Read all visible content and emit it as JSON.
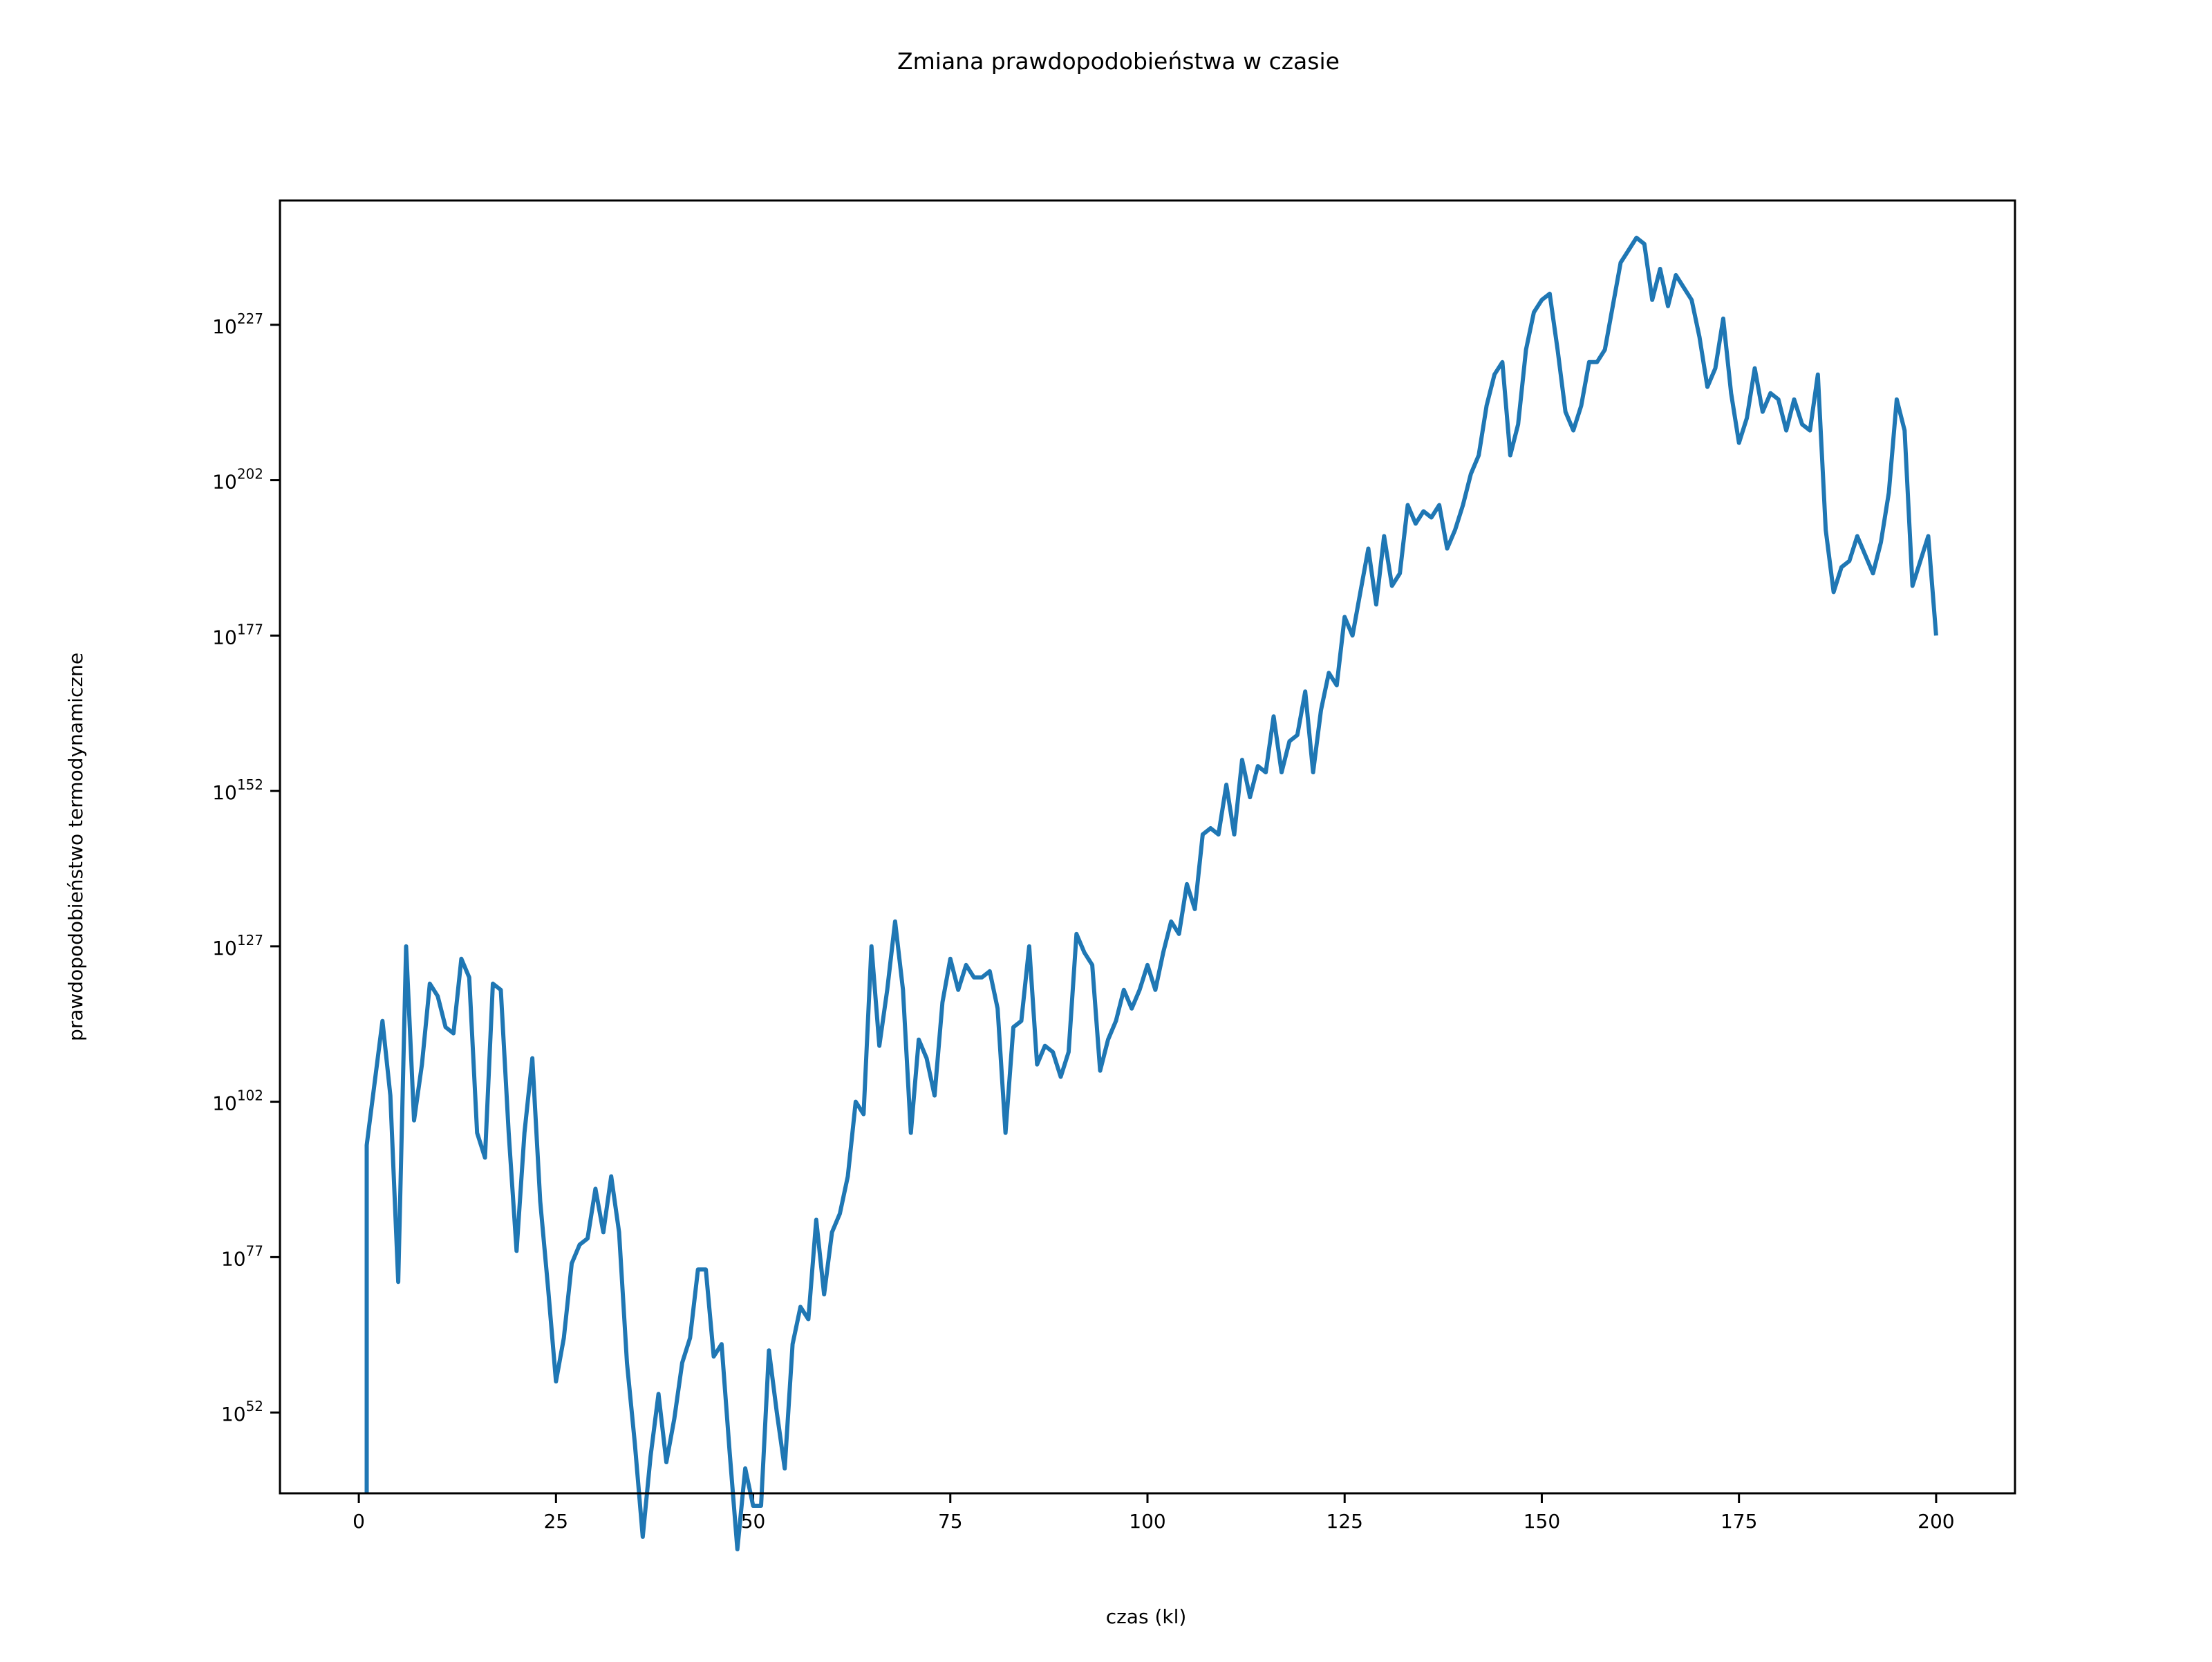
{
  "chart_data": {
    "type": "line",
    "title": "Zmiana prawdopodobieństwa w czasie",
    "xlabel": "czas (kl)",
    "ylabel": "prawdopodobieństwo termodynamiczne",
    "y_scale": "log",
    "xlim": [
      -10,
      210
    ],
    "ylim_exponent": [
      39,
      247
    ],
    "x_ticks": [
      0,
      25,
      50,
      75,
      100,
      125,
      150,
      175,
      200
    ],
    "x_tick_labels": [
      "0",
      "25",
      "50",
      "75",
      "100",
      "125",
      "150",
      "175",
      "200"
    ],
    "y_tick_exponents": [
      52,
      77,
      102,
      127,
      152,
      177,
      202,
      227
    ],
    "y_tick_labels": [
      {
        "base": "10",
        "exp": "52"
      },
      {
        "base": "10",
        "exp": "77"
      },
      {
        "base": "10",
        "exp": "102"
      },
      {
        "base": "10",
        "exp": "127"
      },
      {
        "base": "10",
        "exp": "152"
      },
      {
        "base": "10",
        "exp": "177"
      },
      {
        "base": "10",
        "exp": "202"
      },
      {
        "base": "10",
        "exp": "227"
      }
    ],
    "grid": false,
    "series": [
      {
        "color": "#1f77b4",
        "x": [
          1,
          1,
          2,
          3,
          4,
          5,
          6,
          7,
          8,
          9,
          10,
          11,
          12,
          13,
          14,
          15,
          16,
          17,
          18,
          19,
          20,
          21,
          22,
          23,
          24,
          25,
          26,
          27,
          28,
          29,
          30,
          31,
          32,
          33,
          34,
          35,
          36,
          37,
          38,
          39,
          40,
          41,
          42,
          43,
          44,
          45,
          46,
          47,
          48,
          49,
          50,
          51,
          52,
          53,
          54,
          55,
          56,
          57,
          58,
          59,
          60,
          61,
          62,
          63,
          64,
          65,
          66,
          67,
          68,
          69,
          70,
          71,
          72,
          73,
          74,
          75,
          76,
          77,
          78,
          79,
          80,
          81,
          82,
          83,
          84,
          85,
          86,
          87,
          88,
          89,
          90,
          91,
          92,
          93,
          94,
          95,
          96,
          97,
          98,
          99,
          100,
          101,
          102,
          103,
          104,
          105,
          106,
          107,
          108,
          109,
          110,
          111,
          112,
          113,
          114,
          115,
          116,
          117,
          118,
          119,
          120,
          121,
          122,
          123,
          124,
          125,
          126,
          127,
          128,
          129,
          130,
          131,
          132,
          133,
          134,
          135,
          136,
          137,
          138,
          139,
          140,
          141,
          142,
          143,
          144,
          145,
          146,
          147,
          148,
          149,
          150,
          151,
          152,
          153,
          154,
          155,
          156,
          157,
          158,
          159,
          160,
          161,
          162,
          163,
          164,
          165,
          166,
          167,
          168,
          169,
          170,
          171,
          172,
          173,
          174,
          175,
          176,
          177,
          178,
          179,
          180,
          181,
          182,
          183,
          184,
          185,
          186,
          187,
          188,
          189,
          190,
          191,
          192,
          193,
          194,
          195,
          196,
          197,
          198,
          199,
          200
        ],
        "y_exponent": [
          39,
          95,
          105,
          115,
          103,
          73,
          127,
          99,
          108,
          121,
          119,
          114,
          113,
          125,
          122,
          97,
          93,
          121,
          120,
          97,
          78,
          97,
          109,
          86,
          72,
          57,
          64,
          76,
          79,
          80,
          88,
          81,
          90,
          81,
          60,
          47,
          32,
          45,
          55,
          44,
          51,
          60,
          64,
          75,
          75,
          61,
          63,
          46,
          30,
          43,
          37,
          37,
          62,
          52,
          43,
          63,
          69,
          67,
          83,
          71,
          81,
          84,
          90,
          102,
          100,
          127,
          111,
          120,
          131,
          120,
          97,
          112,
          109,
          103,
          118,
          125,
          120,
          124,
          122,
          122,
          123,
          117,
          97,
          114,
          115,
          127,
          108,
          111,
          110,
          106,
          110,
          129,
          126,
          124,
          107,
          112,
          115,
          120,
          117,
          120,
          124,
          120,
          126,
          131,
          129,
          137,
          133,
          145,
          146,
          145,
          153,
          145,
          157,
          151,
          156,
          155,
          164,
          155,
          160,
          161,
          168,
          155,
          165,
          171,
          169,
          180,
          177,
          184,
          191,
          182,
          193,
          185,
          187,
          198,
          195,
          197,
          196,
          198,
          191,
          194,
          198,
          203,
          206,
          214,
          219,
          221,
          206,
          211,
          223,
          229,
          231,
          232,
          223,
          213,
          210,
          214,
          221,
          221,
          223,
          230,
          237,
          239,
          241,
          240,
          231,
          236,
          230,
          235,
          233,
          231,
          225,
          217,
          220,
          228,
          216,
          208,
          212,
          220,
          213,
          216,
          215,
          210,
          215,
          211,
          210,
          219,
          194,
          184,
          188,
          189,
          193,
          190,
          187,
          192,
          200,
          215,
          210,
          185,
          189,
          193,
          177
        ]
      }
    ]
  }
}
